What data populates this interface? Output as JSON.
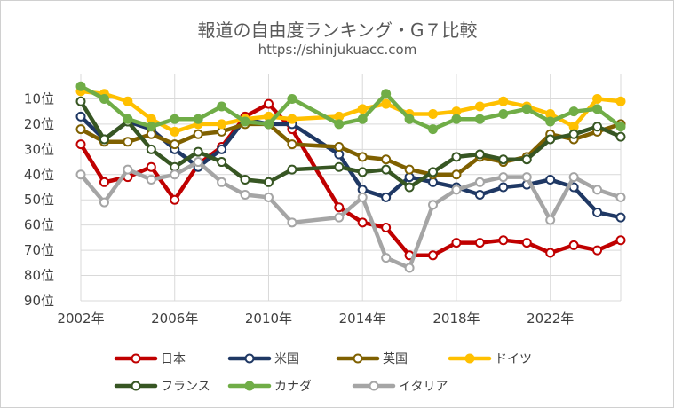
{
  "chart_data": {
    "type": "line",
    "title": "報道の自由度ランキング・G７比較",
    "subtitle": "https://shinjukuacc.com",
    "xlabel": "",
    "ylabel": "",
    "x": [
      2002,
      2003,
      2004,
      2005,
      2006,
      2007,
      2008,
      2009,
      2010,
      2011,
      2012,
      2013,
      2014,
      2015,
      2016,
      2017,
      2018,
      2019,
      2020,
      2021,
      2022,
      2023,
      2024,
      2025
    ],
    "xlim": [
      2002,
      2025
    ],
    "x_ticks": [
      2002,
      2006,
      2010,
      2014,
      2018,
      2022
    ],
    "x_tick_labels": [
      "2002年",
      "2006年",
      "2010年",
      "2014年",
      "2018年",
      "2022年"
    ],
    "y_inverted": true,
    "ylim": [
      0,
      90
    ],
    "y_ticks": [
      10,
      20,
      30,
      40,
      50,
      60,
      70,
      80,
      90
    ],
    "y_tick_labels": [
      "10位",
      "20位",
      "30位",
      "40位",
      "50位",
      "60位",
      "70位",
      "80位",
      "90位"
    ],
    "grid": true,
    "legend_position": "bottom",
    "series": [
      {
        "name": "日本",
        "color": "#C00000",
        "values": [
          28,
          43,
          41,
          37,
          50,
          36,
          29,
          17,
          12,
          22,
          null,
          53,
          59,
          61,
          72,
          72,
          67,
          67,
          66,
          67,
          71,
          68,
          70,
          66
        ]
      },
      {
        "name": "米国",
        "color": "#1F3864",
        "values": [
          17,
          26,
          19,
          22,
          30,
          37,
          30,
          18,
          20,
          20,
          null,
          32,
          46,
          49,
          41,
          43,
          45,
          48,
          45,
          44,
          42,
          45,
          55,
          57
        ]
      },
      {
        "name": "英国",
        "color": "#7F6000",
        "values": [
          22,
          27,
          27,
          24,
          28,
          24,
          23,
          20,
          20,
          28,
          null,
          29,
          33,
          34,
          38,
          40,
          40,
          33,
          35,
          33,
          24,
          26,
          23,
          20
        ]
      },
      {
        "name": "ドイツ",
        "color": "#FFC000",
        "values": [
          7,
          8,
          11,
          18,
          23,
          20,
          20,
          18,
          17,
          18,
          null,
          17,
          14,
          12,
          16,
          16,
          15,
          13,
          11,
          13,
          16,
          21,
          10,
          11
        ]
      },
      {
        "name": "フランス",
        "color": "#375623",
        "values": [
          11,
          26,
          19,
          30,
          37,
          31,
          35,
          42,
          43,
          38,
          null,
          37,
          39,
          38,
          45,
          39,
          33,
          32,
          34,
          34,
          26,
          24,
          21,
          25
        ]
      },
      {
        "name": "カナダ",
        "color": "#70AD47",
        "values": [
          5,
          10,
          18,
          21,
          18,
          18,
          13,
          19,
          20,
          10,
          null,
          20,
          18,
          8,
          18,
          22,
          18,
          18,
          16,
          14,
          19,
          15,
          14,
          21
        ]
      },
      {
        "name": "イタリア",
        "color": "#A5A5A5",
        "values": [
          40,
          51,
          38,
          42,
          40,
          35,
          43,
          48,
          49,
          59,
          null,
          57,
          49,
          73,
          77,
          52,
          46,
          43,
          41,
          41,
          58,
          41,
          46,
          49
        ]
      }
    ]
  }
}
